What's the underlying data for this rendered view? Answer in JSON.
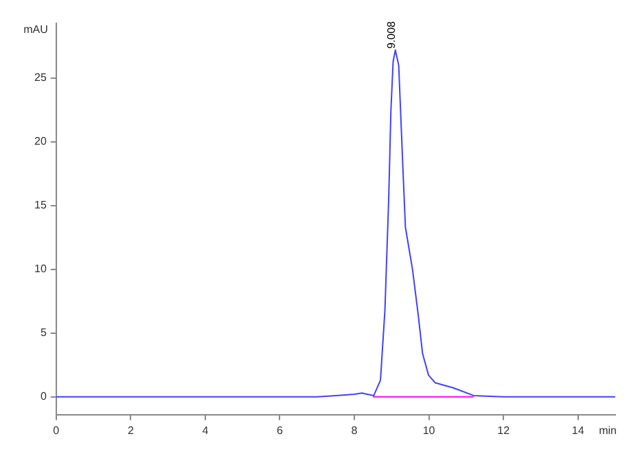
{
  "chart_data": {
    "type": "line",
    "xlabel": "min",
    "ylabel": "mAU",
    "xlim": [
      0,
      15
    ],
    "xticks": [
      0,
      2,
      4,
      6,
      8,
      10,
      12,
      14
    ],
    "ylim": [
      -1.4,
      29.3
    ],
    "yticks": [
      0,
      5,
      10,
      15,
      20,
      25
    ],
    "grid": false,
    "legend": false,
    "marker": "none",
    "line_style": "solid",
    "annotations": [
      {
        "text": "9.008",
        "x": 9.008,
        "y": 27.2
      }
    ],
    "series": [
      {
        "color": "#4040ff",
        "x": [
          0,
          2,
          4,
          6,
          7,
          7.5,
          8,
          8.2,
          8.52,
          8.7,
          8.82,
          8.92,
          8.98,
          9.04,
          9.1,
          9.19,
          9.31,
          9.37,
          9.56,
          9.71,
          9.83,
          9.99,
          10.17,
          10.66,
          11.2,
          12,
          13,
          15
        ],
        "values": [
          0,
          0,
          0,
          0,
          0,
          0.1,
          0.2,
          0.3,
          0.1,
          1.3,
          6.8,
          15.4,
          22.4,
          26.3,
          27.2,
          26,
          17.4,
          13.3,
          10,
          6.5,
          3.4,
          1.7,
          1.1,
          0.7,
          0.1,
          0,
          0,
          0
        ]
      },
      {
        "color": "#ff00ff",
        "x": [
          8.5,
          11.2
        ],
        "values": [
          0,
          0
        ]
      }
    ]
  }
}
